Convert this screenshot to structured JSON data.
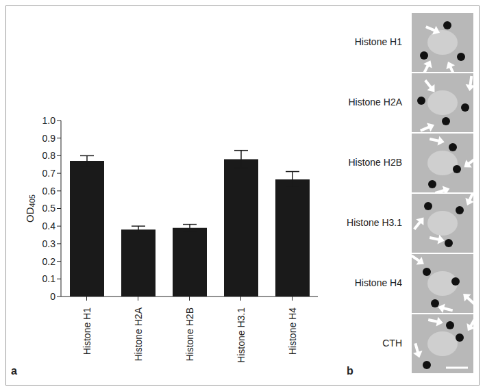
{
  "chart_data": {
    "type": "bar",
    "panel_label": "a",
    "categories": [
      "Histone H1",
      "Histone H2A",
      "Histone H2B",
      "Histone H3.1",
      "Histone H4"
    ],
    "values": [
      0.77,
      0.38,
      0.39,
      0.78,
      0.665
    ],
    "errors": [
      0.03,
      0.02,
      0.02,
      0.05,
      0.045
    ],
    "color": "#1a1a1a",
    "y_label": "OD405",
    "ylim": [
      0,
      1
    ],
    "yticks": [
      0,
      0.1,
      0.2,
      0.3,
      0.4,
      0.5,
      0.6,
      0.7,
      0.8,
      0.9,
      {
        "value": 1,
        "label": "1.0"
      }
    ],
    "grid": false
  },
  "panel_b": {
    "label": "b",
    "rows": [
      "Histone H1",
      "Histone H2A",
      "Histone H2B",
      "Histone H3.1",
      "Histone H4",
      "CTH"
    ]
  }
}
